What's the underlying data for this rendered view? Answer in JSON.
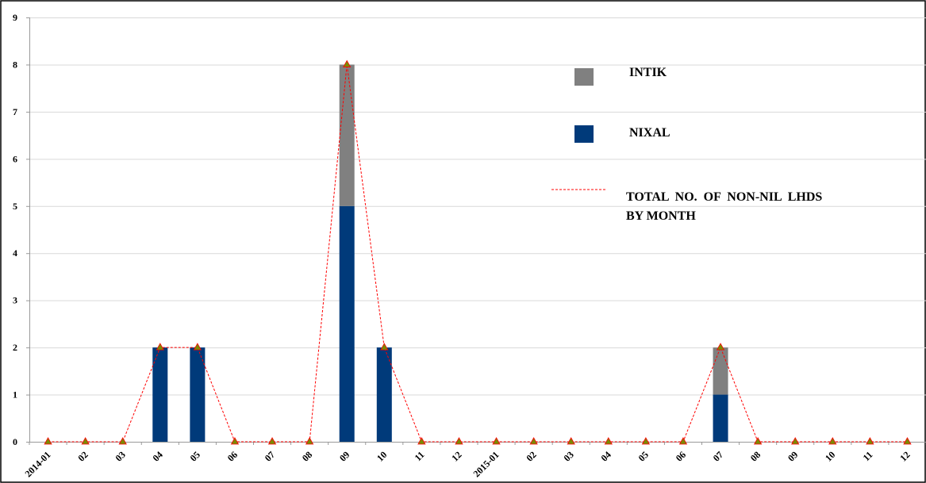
{
  "chart_data": {
    "type": "bar",
    "stacked": true,
    "categories": [
      "2014-01",
      "02",
      "03",
      "04",
      "05",
      "06",
      "07",
      "08",
      "09",
      "10",
      "11",
      "12",
      "2015-01",
      "02",
      "03",
      "04",
      "05",
      "06",
      "07",
      "08",
      "09",
      "10",
      "11",
      "12"
    ],
    "series": [
      {
        "name": "NIXAL",
        "kind": "bar",
        "color": "#003a7a",
        "values": [
          0,
          0,
          0,
          2,
          2,
          0,
          0,
          0,
          5,
          2,
          0,
          0,
          0,
          0,
          0,
          0,
          0,
          0,
          1,
          0,
          0,
          0,
          0,
          0
        ]
      },
      {
        "name": "INTIK",
        "kind": "bar",
        "color": "#808080",
        "values": [
          0,
          0,
          0,
          0,
          0,
          0,
          0,
          0,
          3,
          0,
          0,
          0,
          0,
          0,
          0,
          0,
          0,
          0,
          1,
          0,
          0,
          0,
          0,
          0
        ]
      },
      {
        "name": "TOTAL NO. OF NON-NIL LHDS BY MONTH",
        "kind": "line",
        "style": "dashed",
        "color": "#ff0000",
        "marker": "triangle",
        "marker_color": "#7a8a00",
        "values": [
          0,
          0,
          0,
          2,
          2,
          0,
          0,
          0,
          8,
          2,
          0,
          0,
          0,
          0,
          0,
          0,
          0,
          0,
          2,
          0,
          0,
          0,
          0,
          0
        ]
      }
    ],
    "legend_text": {
      "intik": "INTIK",
      "nixal": "NIXAL",
      "total_line1": "TOTAL  NO.  OF  NON-NIL  LHDS",
      "total_line2": "BY MONTH"
    },
    "y_ticks": [
      "0",
      "1",
      "2",
      "3",
      "4",
      "5",
      "6",
      "7",
      "8",
      "9"
    ],
    "ylim": [
      0,
      9
    ],
    "grid": true,
    "legend_position": "top-right"
  }
}
